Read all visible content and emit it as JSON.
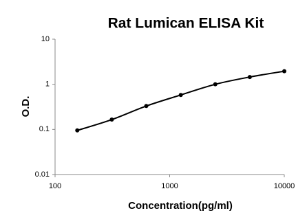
{
  "chart_data": {
    "type": "line",
    "title": "Rat Lumican ELISA Kit",
    "x_label": "Concentration(pg/ml)",
    "y_label": "O.D.",
    "x": [
      156.25,
      312.5,
      625,
      1250,
      2500,
      5000,
      10000
    ],
    "values": [
      0.095,
      0.165,
      0.33,
      0.58,
      1.0,
      1.45,
      1.95
    ],
    "color": "#000000",
    "x_log": true,
    "y_log": true,
    "xlim": [
      100,
      10000
    ],
    "ylim": [
      0.01,
      10
    ],
    "xticks": [
      100,
      1000,
      10000
    ],
    "yticks": [
      0.01,
      0.1,
      1,
      10
    ]
  }
}
